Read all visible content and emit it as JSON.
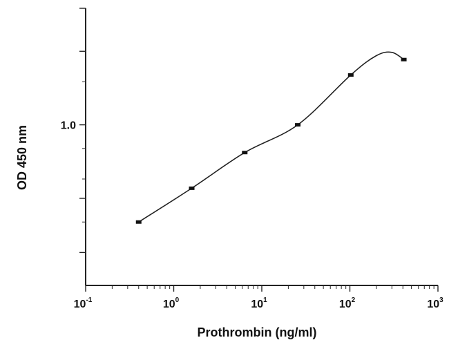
{
  "chart_data": {
    "type": "line",
    "title": "",
    "xlabel": "Prothrombin (ng/ml)",
    "ylabel": "OD 450 nm",
    "xscale": "log",
    "yscale": "log",
    "xlim": [
      0.1,
      1000
    ],
    "ylim": [
      0.22,
      3.0
    ],
    "grid": false,
    "legend": "none",
    "x_ticks": [
      {
        "value": 0.1,
        "base": "10",
        "exp": "-1"
      },
      {
        "value": 1,
        "base": "10",
        "exp": "0"
      },
      {
        "value": 10,
        "base": "10",
        "exp": "1"
      },
      {
        "value": 100,
        "base": "10",
        "exp": "2"
      },
      {
        "value": 1000,
        "base": "10",
        "exp": "3"
      }
    ],
    "y_ticks": [
      {
        "value": 1.0,
        "label": "1.0"
      }
    ],
    "series": [
      {
        "x": [
          0.4,
          1.6,
          6.4,
          25.6,
          102.4,
          409.6
        ],
        "y": [
          0.4,
          0.55,
          0.77,
          1.0,
          1.6,
          1.85
        ]
      }
    ],
    "curve": {
      "x": [
        0.4,
        1.6,
        6.4,
        25.6,
        102.4,
        200,
        300,
        409.6
      ],
      "y": [
        0.4,
        0.55,
        0.77,
        1.0,
        1.6,
        1.92,
        1.98,
        1.85
      ]
    },
    "colors": {
      "ink": "#222222",
      "background": "#ffffff"
    }
  }
}
